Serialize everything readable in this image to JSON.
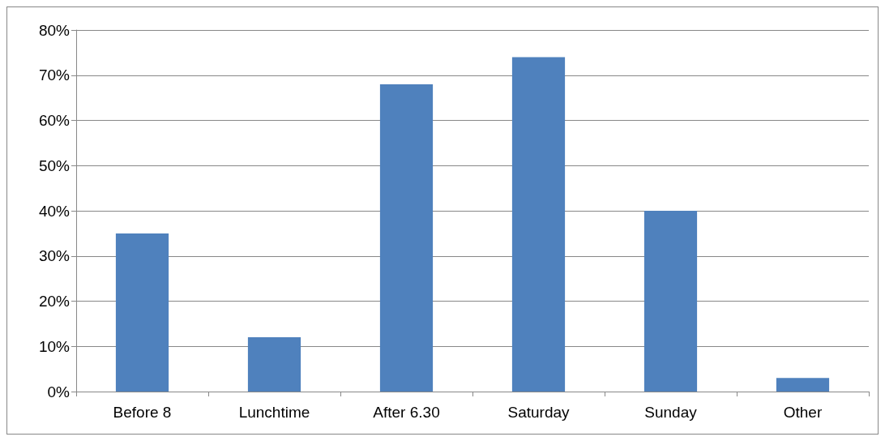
{
  "chart_data": {
    "type": "bar",
    "categories": [
      "Before 8",
      "Lunchtime",
      "After 6.30",
      "Saturday",
      "Sunday",
      "Other"
    ],
    "values": [
      35,
      12,
      68,
      74,
      40,
      3
    ],
    "color": "#4f81bd",
    "ylim": [
      0,
      80
    ],
    "yticks": [
      {
        "value": 0,
        "label": "0%"
      },
      {
        "value": 10,
        "label": "10%"
      },
      {
        "value": 20,
        "label": "20%"
      },
      {
        "value": 30,
        "label": "30%"
      },
      {
        "value": 40,
        "label": "40%"
      },
      {
        "value": 50,
        "label": "50%"
      },
      {
        "value": 60,
        "label": "60%"
      },
      {
        "value": 70,
        "label": "70%"
      },
      {
        "value": 80,
        "label": "80%"
      }
    ],
    "grid": true
  }
}
